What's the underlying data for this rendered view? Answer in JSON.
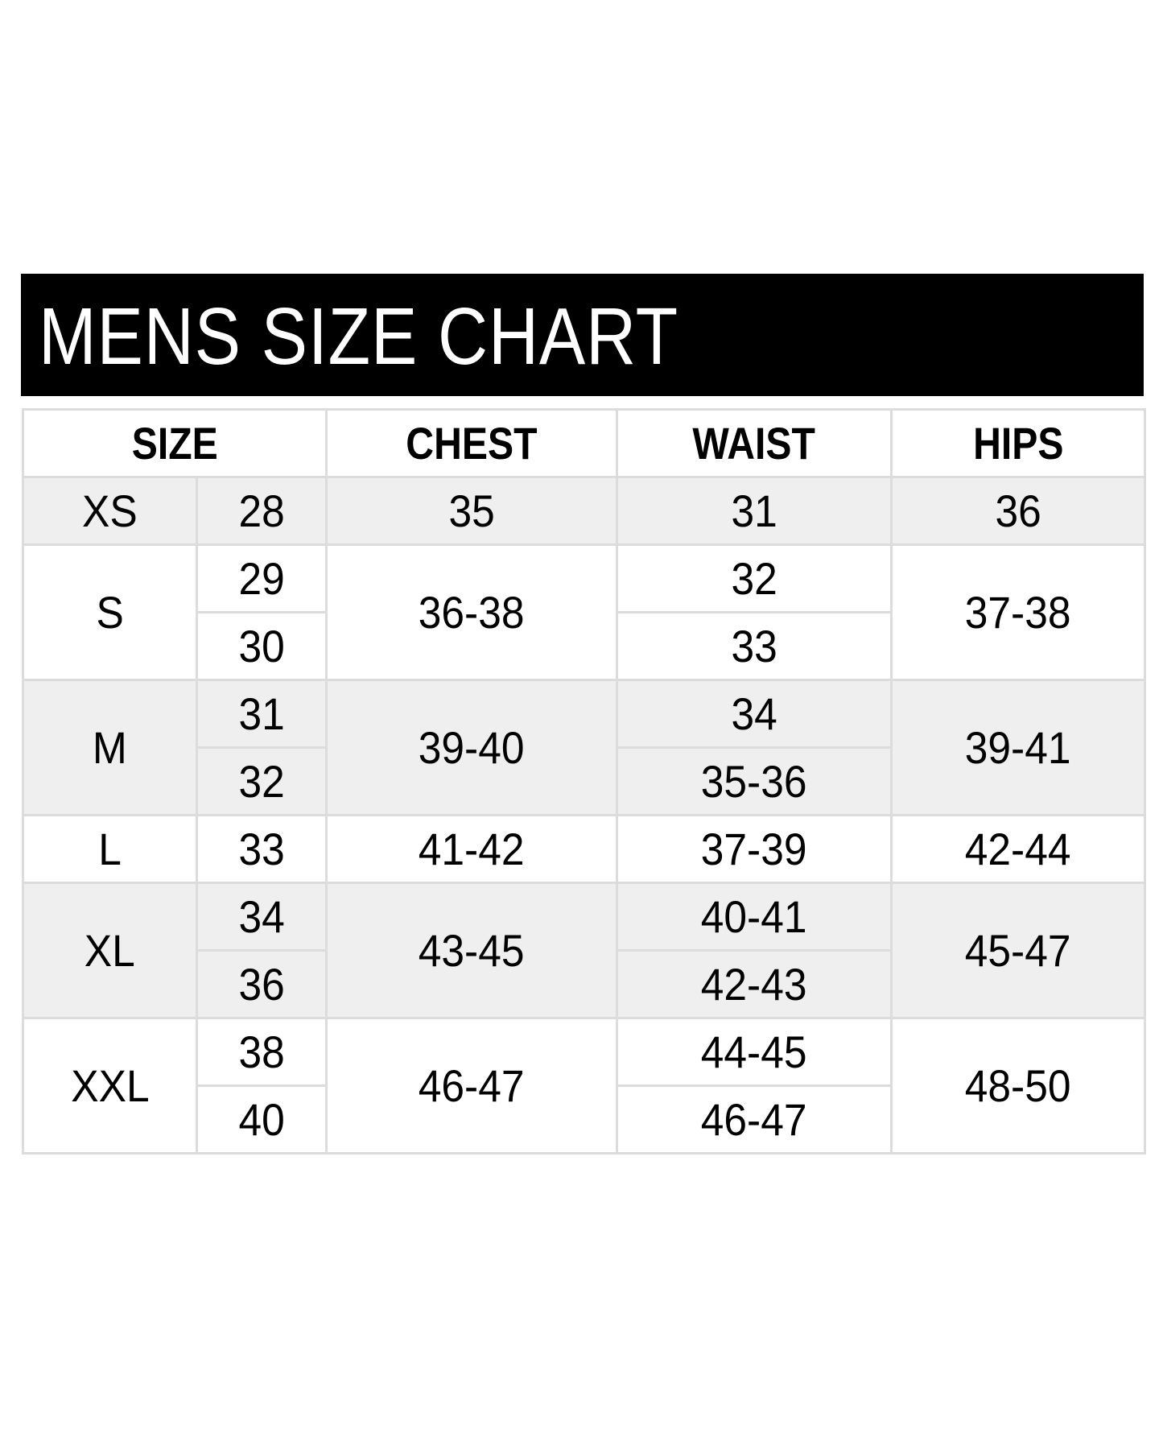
{
  "title": "MENS SIZE CHART",
  "columns": [
    "SIZE",
    "CHEST",
    "WAIST",
    "HIPS"
  ],
  "colors": {
    "header_bg": "#000000",
    "stripe": "#efefef",
    "border": "#dcdcdc"
  },
  "rows": [
    {
      "size": "XS",
      "numbers": [
        "28"
      ],
      "chest": "35",
      "waist": [
        "31"
      ],
      "hips": "36"
    },
    {
      "size": "S",
      "numbers": [
        "29",
        "30"
      ],
      "chest": "36-38",
      "waist": [
        "32",
        "33"
      ],
      "hips": "37-38"
    },
    {
      "size": "M",
      "numbers": [
        "31",
        "32"
      ],
      "chest": "39-40",
      "waist": [
        "34",
        "35-36"
      ],
      "hips": "39-41"
    },
    {
      "size": "L",
      "numbers": [
        "33"
      ],
      "chest": "41-42",
      "waist": [
        "37-39"
      ],
      "hips": "42-44"
    },
    {
      "size": "XL",
      "numbers": [
        "34",
        "36"
      ],
      "chest": "43-45",
      "waist": [
        "40-41",
        "42-43"
      ],
      "hips": "45-47"
    },
    {
      "size": "XXL",
      "numbers": [
        "38",
        "40"
      ],
      "chest": "46-47",
      "waist": [
        "44-45",
        "46-47"
      ],
      "hips": "48-50"
    }
  ]
}
